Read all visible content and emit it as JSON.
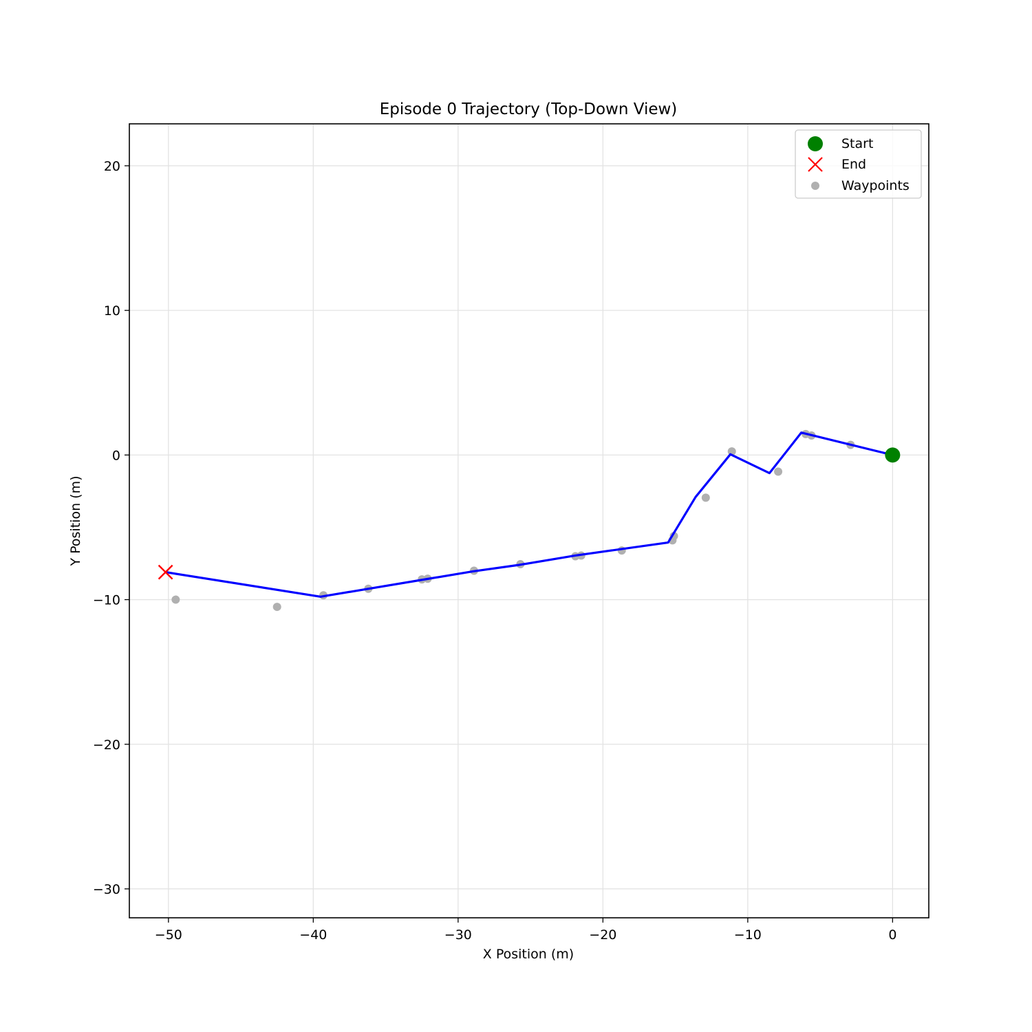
{
  "chart_data": {
    "type": "line",
    "title": "Episode 0 Trajectory (Top-Down View)",
    "xlabel": "X Position (m)",
    "ylabel": "Y Position (m)",
    "xlim": [
      -52.7,
      2.5
    ],
    "ylim": [
      -32.0,
      22.9
    ],
    "xticks": [
      -50,
      -40,
      -30,
      -20,
      -10,
      0
    ],
    "yticks": [
      -30,
      -20,
      -10,
      0,
      10,
      20
    ],
    "xtick_labels": [
      "−50",
      "−40",
      "−30",
      "−20",
      "−10",
      "0"
    ],
    "ytick_labels": [
      "−30",
      "−20",
      "−10",
      "0",
      "10",
      "20"
    ],
    "grid": true,
    "legend_position": "top-right",
    "series": [
      {
        "name": "",
        "kind": "line",
        "color": "#0000ff",
        "points": [
          [
            0,
            0
          ],
          [
            -6.3,
            1.55
          ],
          [
            -8.5,
            -1.25
          ],
          [
            -11.2,
            0.05
          ],
          [
            -13.6,
            -2.9
          ],
          [
            -15.5,
            -6.05
          ],
          [
            -21.9,
            -6.95
          ],
          [
            -25.8,
            -7.6
          ],
          [
            -29.0,
            -8.05
          ],
          [
            -32.3,
            -8.6
          ],
          [
            -36.2,
            -9.25
          ],
          [
            -39.5,
            -9.8
          ],
          [
            -50.2,
            -8.1
          ]
        ]
      },
      {
        "name": "Waypoints",
        "kind": "scatter",
        "color": "#b0b0b0",
        "points": [
          [
            -2.9,
            0.7
          ],
          [
            -5.6,
            1.35
          ],
          [
            -6.0,
            1.45
          ],
          [
            -7.9,
            -1.15
          ],
          [
            -11.1,
            0.25
          ],
          [
            -12.9,
            -2.95
          ],
          [
            -15.1,
            -5.6
          ],
          [
            -15.2,
            -5.9
          ],
          [
            -18.7,
            -6.6
          ],
          [
            -21.5,
            -6.95
          ],
          [
            -21.9,
            -7.0
          ],
          [
            -25.7,
            -7.55
          ],
          [
            -28.9,
            -8.0
          ],
          [
            -32.1,
            -8.55
          ],
          [
            -32.5,
            -8.6
          ],
          [
            -36.2,
            -9.25
          ],
          [
            -39.3,
            -9.7
          ],
          [
            -42.5,
            -10.5
          ],
          [
            -49.5,
            -10.0
          ]
        ]
      },
      {
        "name": "Start",
        "kind": "marker",
        "marker": "circle",
        "color": "#008000",
        "points": [
          [
            0,
            0
          ]
        ]
      },
      {
        "name": "End",
        "kind": "marker",
        "marker": "x",
        "color": "#ff0000",
        "points": [
          [
            -50.2,
            -8.1
          ]
        ]
      }
    ],
    "legend": [
      "Start",
      "End",
      "Waypoints"
    ]
  }
}
